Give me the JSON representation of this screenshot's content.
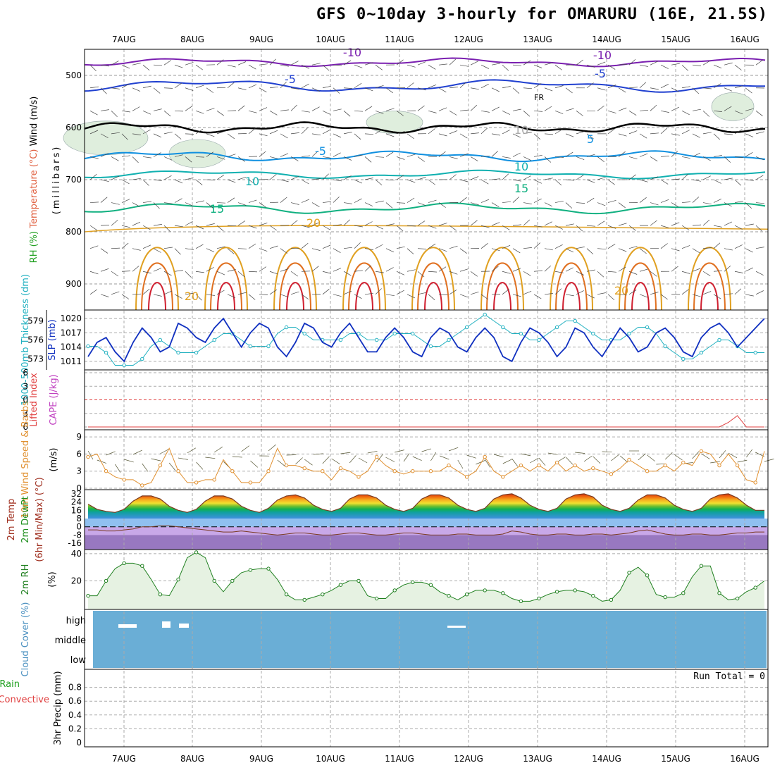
{
  "title": "GFS 0~10day 3-hourly for OMARURU (16E, 21.5S)",
  "days": [
    "7AUG",
    "8AUG",
    "9AUG",
    "10AUG",
    "11AUG",
    "12AUG",
    "13AUG",
    "14AUG",
    "15AUG",
    "16AUG"
  ],
  "colors": {
    "temp_cold": "#7a1fb0",
    "temp_m5": "#2040d0",
    "freezing": "#000000",
    "temp_5": "#1090e0",
    "temp_10": "#10b0b0",
    "temp_15": "#10b080",
    "temp_20": "#e0a020",
    "temp_25": "#e07020",
    "temp_30": "#d02030",
    "slp": "#1030c0",
    "thickness": "#20b0c0",
    "wind10m": "#e09030",
    "rh2m": "#208020",
    "cloud": "#6aaed6",
    "cape": "#c040c0"
  },
  "chart_data": [
    {
      "type": "line",
      "panel": "upper-air",
      "ylabel_parts": [
        "RH (%)",
        "Temperature (°C)",
        "Wind (m/s)"
      ],
      "ylabel_units": "(millibars)",
      "yticks": [
        500,
        600,
        700,
        800,
        900
      ],
      "ylim": [
        450,
        950
      ],
      "contour_labels": [
        "-10",
        "-10",
        "-5",
        "-5",
        "FR",
        "10",
        "-5",
        "5",
        "10",
        "10",
        "15",
        "15",
        "20",
        "20",
        "20"
      ]
    },
    {
      "type": "line",
      "panel": "slp-thickness",
      "ylabel_left": "1000-500mb Thickness (dm)",
      "ylabel_right": "SLP (mb)",
      "yticks_left": [
        573,
        576,
        579
      ],
      "yticks_right": [
        1011,
        1014,
        1017,
        1020
      ],
      "series": [
        {
          "name": "SLP (mb)",
          "values": [
            1012,
            1015,
            1016,
            1013,
            1011,
            1015,
            1018,
            1016,
            1013,
            1014,
            1019,
            1018,
            1016,
            1015,
            1018,
            1020,
            1017,
            1014,
            1017,
            1019,
            1018,
            1014,
            1012,
            1015,
            1019,
            1018,
            1015,
            1014,
            1017,
            1019,
            1016,
            1013,
            1013,
            1016,
            1018,
            1016,
            1013,
            1012,
            1016,
            1018,
            1017,
            1014,
            1013,
            1016,
            1018,
            1016,
            1012,
            1011,
            1015,
            1018,
            1017,
            1015,
            1012,
            1014,
            1018,
            1017,
            1014,
            1012,
            1015,
            1018,
            1016,
            1013,
            1014,
            1017,
            1018,
            1016,
            1013,
            1012,
            1016,
            1018,
            1019,
            1017,
            1014,
            1016,
            1018,
            1020
          ]
        },
        {
          "name": "1000-500mb Thickness (dm)",
          "values": [
            575,
            575,
            574,
            572,
            572,
            572,
            573,
            575,
            576,
            575,
            574,
            574,
            574,
            575,
            576,
            577,
            577,
            576,
            575,
            575,
            575,
            577,
            578,
            578,
            577,
            576,
            576,
            576,
            576,
            577,
            577,
            576,
            576,
            576,
            577,
            577,
            577,
            576,
            575,
            575,
            576,
            577,
            578,
            579,
            580,
            579,
            578,
            577,
            577,
            576,
            576,
            577,
            578,
            579,
            579,
            578,
            577,
            576,
            576,
            576,
            577,
            578,
            578,
            577,
            575,
            574,
            573,
            573,
            574,
            575,
            576,
            576,
            575,
            574,
            574,
            574
          ]
        }
      ]
    },
    {
      "type": "line",
      "panel": "stability",
      "ylabel_left": "Lifted Index",
      "ylabel_right": "CAPE (J/kg)",
      "yticks": [
        -6,
        -3,
        0,
        3,
        6
      ],
      "series": [
        {
          "name": "Lifted Index",
          "values": [
            6,
            6,
            6,
            6,
            6,
            6,
            6,
            6,
            6,
            6,
            6,
            6,
            6,
            6,
            6,
            6,
            6,
            6,
            6,
            6,
            6,
            6,
            6,
            6,
            6,
            6,
            6,
            6,
            6,
            6,
            6,
            6,
            6,
            6,
            6,
            6,
            6,
            6,
            6,
            6,
            6,
            6,
            6,
            6,
            6,
            6,
            6,
            6,
            6,
            6,
            6,
            6,
            6,
            6,
            6,
            6,
            6,
            6,
            6,
            6,
            6,
            6,
            6,
            6,
            6,
            6,
            6,
            6,
            6,
            6,
            6,
            5,
            3.5,
            6,
            6,
            6
          ]
        }
      ]
    },
    {
      "type": "line",
      "panel": "wind10m",
      "ylabel_left": "10m Wind Speed & Barbs",
      "ylabel_units": "(m/s)",
      "yticks": [
        0,
        3,
        6,
        9
      ],
      "ylim": [
        0,
        10
      ],
      "series": [
        {
          "name": "10m Wind Speed",
          "values": [
            5.5,
            6,
            3,
            2,
            1.5,
            1.5,
            0.5,
            1,
            4,
            7,
            3,
            1,
            1,
            1.5,
            1.5,
            5,
            3,
            1,
            1,
            1,
            3,
            7,
            4,
            4,
            3.5,
            3,
            3,
            1.5,
            3.5,
            3,
            2,
            3,
            5.5,
            4,
            3,
            2.5,
            3,
            3,
            3,
            3,
            4,
            3,
            2,
            3,
            5.5,
            3,
            2,
            3,
            4,
            3,
            4,
            3,
            4.5,
            3,
            4,
            3,
            3.5,
            3,
            2.5,
            3.5,
            5,
            4,
            3,
            3,
            4,
            3,
            4.5,
            4,
            6.5,
            6,
            4,
            6,
            4,
            1.5,
            1,
            6.5
          ]
        }
      ]
    },
    {
      "type": "area",
      "panel": "temp2m",
      "ylabel_parts": [
        "2m Temp",
        "2m DewPt",
        "(6hr Min/Max) (°C)"
      ],
      "yticks": [
        -16,
        -8,
        0,
        8,
        16,
        24,
        32
      ],
      "ylim": [
        -20,
        34
      ],
      "series": [
        {
          "name": "2m Temp",
          "values": [
            22,
            17,
            15,
            14,
            17,
            25,
            30,
            30,
            27,
            20,
            16,
            14,
            17,
            25,
            30,
            30,
            27,
            20,
            16,
            14,
            18,
            26,
            30,
            31,
            28,
            21,
            17,
            15,
            18,
            27,
            31,
            31,
            28,
            21,
            17,
            15,
            18,
            27,
            31,
            31,
            28,
            21,
            17,
            15,
            18,
            27,
            31,
            32,
            28,
            21,
            17,
            15,
            18,
            27,
            31,
            32,
            29,
            21,
            17,
            15,
            18,
            26,
            31,
            31,
            28,
            21,
            17,
            15,
            18,
            27,
            31,
            32,
            28,
            21,
            16,
            16
          ]
        },
        {
          "name": "2m DewPt",
          "values": [
            -3,
            -3,
            -4,
            -4,
            -3,
            -2,
            0,
            0,
            1,
            1,
            0,
            -1,
            -2,
            -3,
            -4,
            -5,
            -5,
            -4,
            -5,
            -6,
            -7,
            -8,
            -7,
            -6,
            -6,
            -7,
            -8,
            -8,
            -7,
            -6,
            -6,
            -7,
            -8,
            -8,
            -7,
            -6,
            -6,
            -7,
            -8,
            -8,
            -8,
            -7,
            -7,
            -8,
            -8,
            -8,
            -7,
            -4,
            -5,
            -7,
            -8,
            -8,
            -7,
            -7,
            -8,
            -8,
            -7,
            -7,
            -8,
            -7,
            -6,
            -4,
            -3,
            -5,
            -7,
            -8,
            -8,
            -7,
            -7,
            -8,
            -8,
            -7,
            -6,
            -6,
            -5,
            -5
          ]
        }
      ]
    },
    {
      "type": "area",
      "panel": "rh2m",
      "ylabel_parts": [
        "2m RH",
        "(%)"
      ],
      "yticks": [
        20,
        40
      ],
      "ylim": [
        0,
        42
      ],
      "series": [
        {
          "name": "2m RH",
          "values": [
            9,
            9,
            20,
            29,
            33,
            33,
            31,
            21,
            10,
            9,
            21,
            37,
            41,
            37,
            20,
            12,
            20,
            26,
            28,
            29,
            29,
            21,
            10,
            6,
            6,
            8,
            10,
            13,
            17,
            20,
            20,
            9,
            7,
            7,
            13,
            17,
            19,
            19,
            17,
            12,
            9,
            6,
            10,
            13,
            13,
            13,
            11,
            7,
            5,
            5,
            7,
            10,
            12,
            13,
            13,
            12,
            9,
            5,
            6,
            13,
            26,
            30,
            24,
            10,
            8,
            8,
            11,
            23,
            31,
            31,
            11,
            6,
            7,
            12,
            15,
            20
          ]
        }
      ]
    },
    {
      "type": "heatmap",
      "panel": "cloud",
      "ylabel": "Cloud Cover (%)",
      "levels": [
        "high",
        "middle",
        "low"
      ]
    },
    {
      "type": "bar",
      "panel": "precip",
      "ylabel_left": "Total / Rain",
      "ylabel_left2": "Convective",
      "ylabel_right": "3hr Precip (mm)",
      "yticks": [
        0,
        0.2,
        0.4,
        0.6,
        0.8
      ],
      "ylim": [
        0,
        1
      ],
      "run_total": "Run Total = 0",
      "values": []
    }
  ]
}
